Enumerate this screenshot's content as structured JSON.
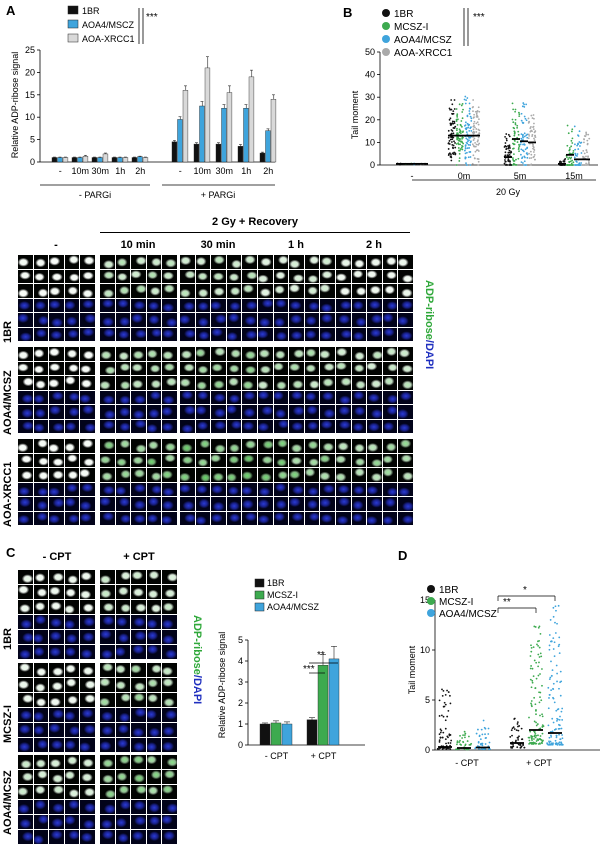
{
  "panel_labels": {
    "a": "A",
    "b": "B",
    "c": "C",
    "d": "D"
  },
  "colors": {
    "black": "#111111",
    "dark_gray": "#444444",
    "green": "#3daa4f",
    "light_green": "#5fcf78",
    "blue": "#3fa4dc",
    "gray": "#bdbdbd",
    "fluor_green": "#2fa83a",
    "dapi_blue": "#1f2fbf"
  },
  "panel_a": {
    "ylabel": "Relative ADP-ribose signal",
    "significance": "***",
    "groups": [
      "- PARGi",
      "+ PARGi"
    ]
  },
  "panel_b": {
    "ylabel": "Tail moment",
    "significance": "***",
    "dose_label": "20 Gy"
  },
  "panel_middle": {
    "header": "2 Gy + Recovery",
    "columns": [
      "-",
      "10 min",
      "30 min",
      "1 h",
      "2 h"
    ],
    "rows": [
      "1BR",
      "AOA4/MCSZ",
      "AOA-XRCC1"
    ],
    "side_label_green": "ADP-ribose",
    "side_label_blue": "/DAPI"
  },
  "panel_c": {
    "columns": [
      "- CPT",
      "+ CPT"
    ],
    "rows": [
      "1BR",
      "MCSZ-I",
      "AOA4/MCSZ"
    ],
    "side_label_green": "ADP-ribose",
    "side_label_blue": "/DAPI"
  },
  "panel_c_chart": {
    "ylabel": "Relative ADP-ribose signal",
    "sig1": "***",
    "sig2": "**"
  },
  "panel_d": {
    "ylabel": "Tail  moment",
    "sig1": "**",
    "sig2": "*"
  },
  "chart_data": [
    {
      "type": "bar",
      "panel": "A",
      "categories": [
        "-",
        "10m",
        "30m",
        "1h",
        "2h",
        "-",
        "10m",
        "30m",
        "1h",
        "2h"
      ],
      "series": [
        {
          "name": "1BR",
          "color": "#111111",
          "values": [
            1,
            1,
            1,
            1,
            1,
            4.5,
            4,
            4,
            3.5,
            2
          ]
        },
        {
          "name": "AOA4/MSCZ",
          "color": "#3fa4dc",
          "values": [
            1,
            1,
            1,
            1,
            1.2,
            9.5,
            12.5,
            12,
            12,
            7
          ]
        },
        {
          "name": "AOA-XRCC1",
          "color": "#d9d9d9",
          "values": [
            1,
            1.3,
            1.8,
            1,
            1,
            16,
            21,
            15.5,
            19,
            14
          ]
        }
      ],
      "errors": [
        [
          0.1,
          0.1,
          0.1,
          0.1,
          0.1,
          0.3,
          0.3,
          0.3,
          0.4,
          0.2
        ],
        [
          0.1,
          0.1,
          0.1,
          0.1,
          0.1,
          0.6,
          1,
          0.8,
          0.8,
          0.4
        ],
        [
          0.1,
          0.2,
          0.2,
          0.1,
          0.1,
          1,
          2.5,
          1.5,
          1.5,
          1
        ]
      ],
      "ylim": [
        0,
        25
      ],
      "yticks": [
        0,
        5,
        10,
        15,
        20,
        25
      ],
      "legend": "top-left"
    },
    {
      "type": "scatter",
      "panel": "B",
      "categories": [
        "-",
        "0m",
        "5m",
        "15m"
      ],
      "series": [
        {
          "name": "1BR",
          "color": "#111111",
          "median": [
            0.5,
            13,
            3.5,
            0.5
          ]
        },
        {
          "name": "MCSZ-I",
          "color": "#3daa4f",
          "median": [
            0.5,
            13,
            11.5,
            4.5
          ]
        },
        {
          "name": "AOA4/MCSZ",
          "color": "#3fa4dc",
          "median": [
            0.5,
            13,
            10.5,
            2.5
          ]
        },
        {
          "name": "AOA-XRCC1",
          "color": "#aaaaaa",
          "median": [
            0.5,
            13,
            10,
            2.5
          ]
        }
      ],
      "ylim": [
        0,
        50
      ],
      "yticks": [
        0,
        10,
        20,
        30,
        40,
        50
      ],
      "legend": "top-left"
    },
    {
      "type": "bar",
      "panel": "C",
      "categories": [
        "- CPT",
        "+ CPT"
      ],
      "series": [
        {
          "name": "1BR",
          "color": "#111111",
          "values": [
            1,
            1.2
          ]
        },
        {
          "name": "MCSZ-I",
          "color": "#3daa4f",
          "values": [
            1.05,
            3.8
          ]
        },
        {
          "name": "AOA4/MCSZ",
          "color": "#3fa4dc",
          "values": [
            1,
            4.1
          ]
        }
      ],
      "errors": [
        [
          0.05,
          0.1
        ],
        [
          0.1,
          0.5
        ],
        [
          0.1,
          0.6
        ]
      ],
      "ylim": [
        0,
        5
      ],
      "yticks": [
        0,
        1,
        2,
        3,
        4,
        5
      ],
      "legend": "top-right"
    },
    {
      "type": "scatter",
      "panel": "D",
      "categories": [
        "- CPT",
        "+ CPT"
      ],
      "series": [
        {
          "name": "1BR",
          "color": "#111111",
          "median": [
            0.3,
            0.7
          ]
        },
        {
          "name": "MCSZ-I",
          "color": "#3daa4f",
          "median": [
            0.2,
            2.0
          ]
        },
        {
          "name": "AOA4/MCSZ",
          "color": "#3fa4dc",
          "median": [
            0.25,
            1.7
          ]
        }
      ],
      "ylim": [
        0,
        15
      ],
      "yticks": [
        0,
        5,
        10,
        15
      ],
      "legend": "top-left"
    }
  ]
}
